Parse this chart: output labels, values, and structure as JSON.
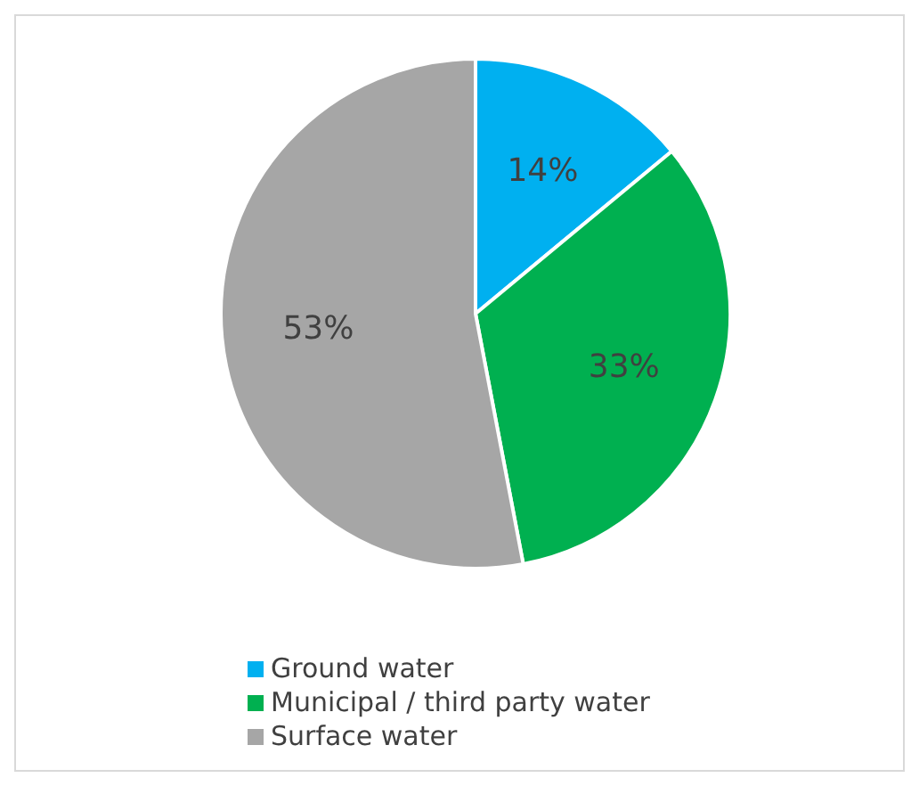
{
  "chart_data": {
    "type": "pie",
    "categories": [
      "Ground water",
      "Municipal / third party water",
      "Surface water"
    ],
    "values": [
      14,
      33,
      53
    ],
    "colors": [
      "#00b0f0",
      "#00b050",
      "#a6a6a6"
    ],
    "value_labels": [
      "14%",
      "33%",
      "53%"
    ],
    "legend": "bottom"
  }
}
